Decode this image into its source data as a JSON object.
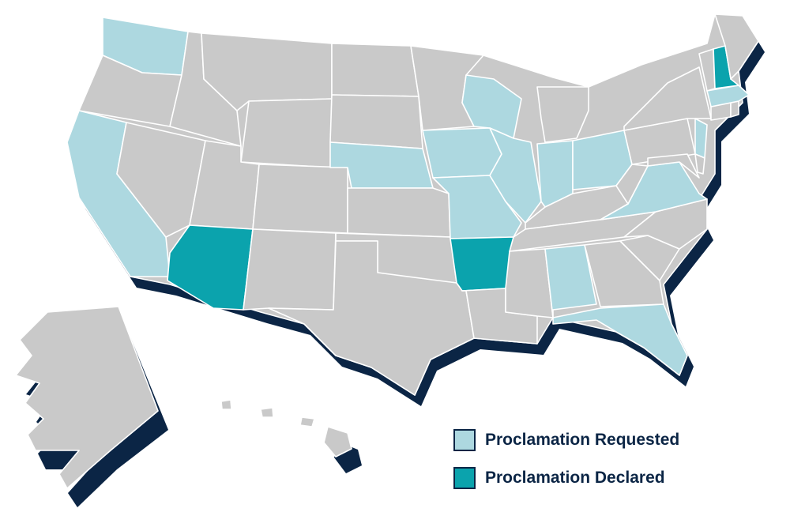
{
  "colors": {
    "none": "#c9c9c9",
    "requested": "#add8e0",
    "declared": "#0ba3ad",
    "shadow": "#0b2545",
    "border": "#ffffff",
    "text": "#0b2545"
  },
  "legend": {
    "requested_label": "Proclamation Requested",
    "declared_label": "Proclamation Declared"
  },
  "states": {
    "requested": [
      "WA",
      "CA",
      "NE",
      "IA",
      "MO",
      "WI",
      "IL",
      "IN",
      "OH",
      "VA",
      "NJ",
      "MA",
      "AL",
      "FL"
    ],
    "declared": [
      "AZ",
      "AR",
      "NH"
    ]
  }
}
